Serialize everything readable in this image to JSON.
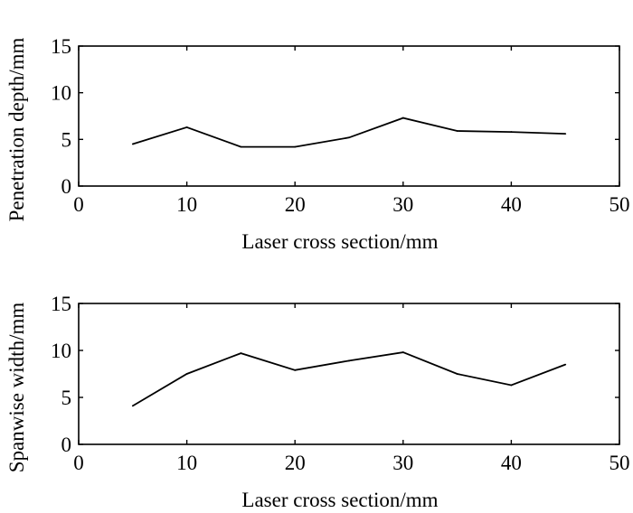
{
  "chart_data": [
    {
      "type": "line",
      "xlabel": "Laser cross section/mm",
      "ylabel": "Penetration depth/mm",
      "xlim": [
        0,
        50
      ],
      "ylim": [
        0,
        15
      ],
      "xticks": [
        "0",
        "10",
        "20",
        "30",
        "40",
        "50"
      ],
      "yticks": [
        "0",
        "5",
        "10",
        "15"
      ],
      "grid": false,
      "series": [
        {
          "x": [
            5,
            10,
            15,
            20,
            25,
            30,
            35,
            40,
            45
          ],
          "y": [
            4.5,
            6.3,
            4.2,
            4.2,
            5.2,
            7.3,
            5.9,
            5.8,
            5.6
          ]
        }
      ]
    },
    {
      "type": "line",
      "xlabel": "Laser cross section/mm",
      "ylabel": "Spanwise width/mm",
      "xlim": [
        0,
        50
      ],
      "ylim": [
        0,
        15
      ],
      "xticks": [
        "0",
        "10",
        "20",
        "30",
        "40",
        "50"
      ],
      "yticks": [
        "0",
        "5",
        "10",
        "15"
      ],
      "grid": false,
      "series": [
        {
          "x": [
            5,
            10,
            15,
            20,
            25,
            30,
            35,
            40,
            45
          ],
          "y": [
            4.1,
            7.5,
            9.7,
            7.9,
            8.9,
            9.8,
            7.5,
            6.3,
            8.5
          ]
        }
      ]
    }
  ]
}
